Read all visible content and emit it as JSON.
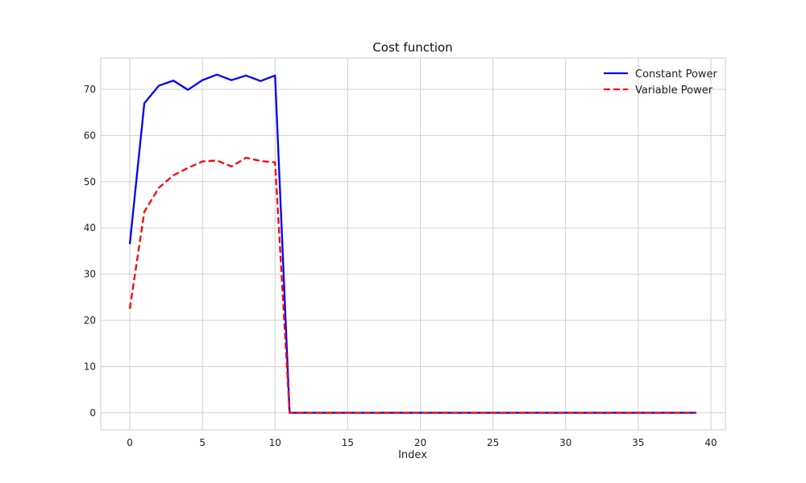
{
  "chart_data": {
    "type": "line",
    "title": "Cost function",
    "xlabel": "Index",
    "ylabel": "",
    "xlim": [
      -2,
      41
    ],
    "ylim": [
      -3.7,
      76.8
    ],
    "xticks": [
      0,
      5,
      10,
      15,
      20,
      25,
      30,
      35,
      40
    ],
    "yticks": [
      0,
      10,
      20,
      30,
      40,
      50,
      60,
      70
    ],
    "grid": true,
    "legend_position": "top-right",
    "x": [
      0,
      1,
      2,
      3,
      4,
      5,
      6,
      7,
      8,
      9,
      10,
      11,
      12,
      13,
      14,
      15,
      16,
      17,
      18,
      19,
      20,
      21,
      22,
      23,
      24,
      25,
      26,
      27,
      28,
      29,
      30,
      31,
      32,
      33,
      34,
      35,
      36,
      37,
      38,
      39
    ],
    "series": [
      {
        "name": "Constant Power",
        "color": "#0000ff",
        "style": "solid",
        "values": [
          36.5,
          67,
          70.8,
          71.9,
          69.9,
          72,
          73.2,
          72,
          73,
          71.8,
          73,
          0,
          0,
          0,
          0,
          0,
          0,
          0,
          0,
          0,
          0,
          0,
          0,
          0,
          0,
          0,
          0,
          0,
          0,
          0,
          0,
          0,
          0,
          0,
          0,
          0,
          0,
          0,
          0,
          0
        ]
      },
      {
        "name": "Variable Power",
        "color": "#ff0000",
        "style": "dashed",
        "values": [
          22.5,
          43.5,
          48.7,
          51.4,
          53,
          54.4,
          54.6,
          53.3,
          55.2,
          54.5,
          54.2,
          0,
          0,
          0,
          0,
          0,
          0,
          0,
          0,
          0,
          0,
          0,
          0,
          0,
          0,
          0,
          0,
          0,
          0,
          0,
          0,
          0,
          0,
          0,
          0,
          0,
          0,
          0,
          0,
          0
        ]
      }
    ]
  }
}
